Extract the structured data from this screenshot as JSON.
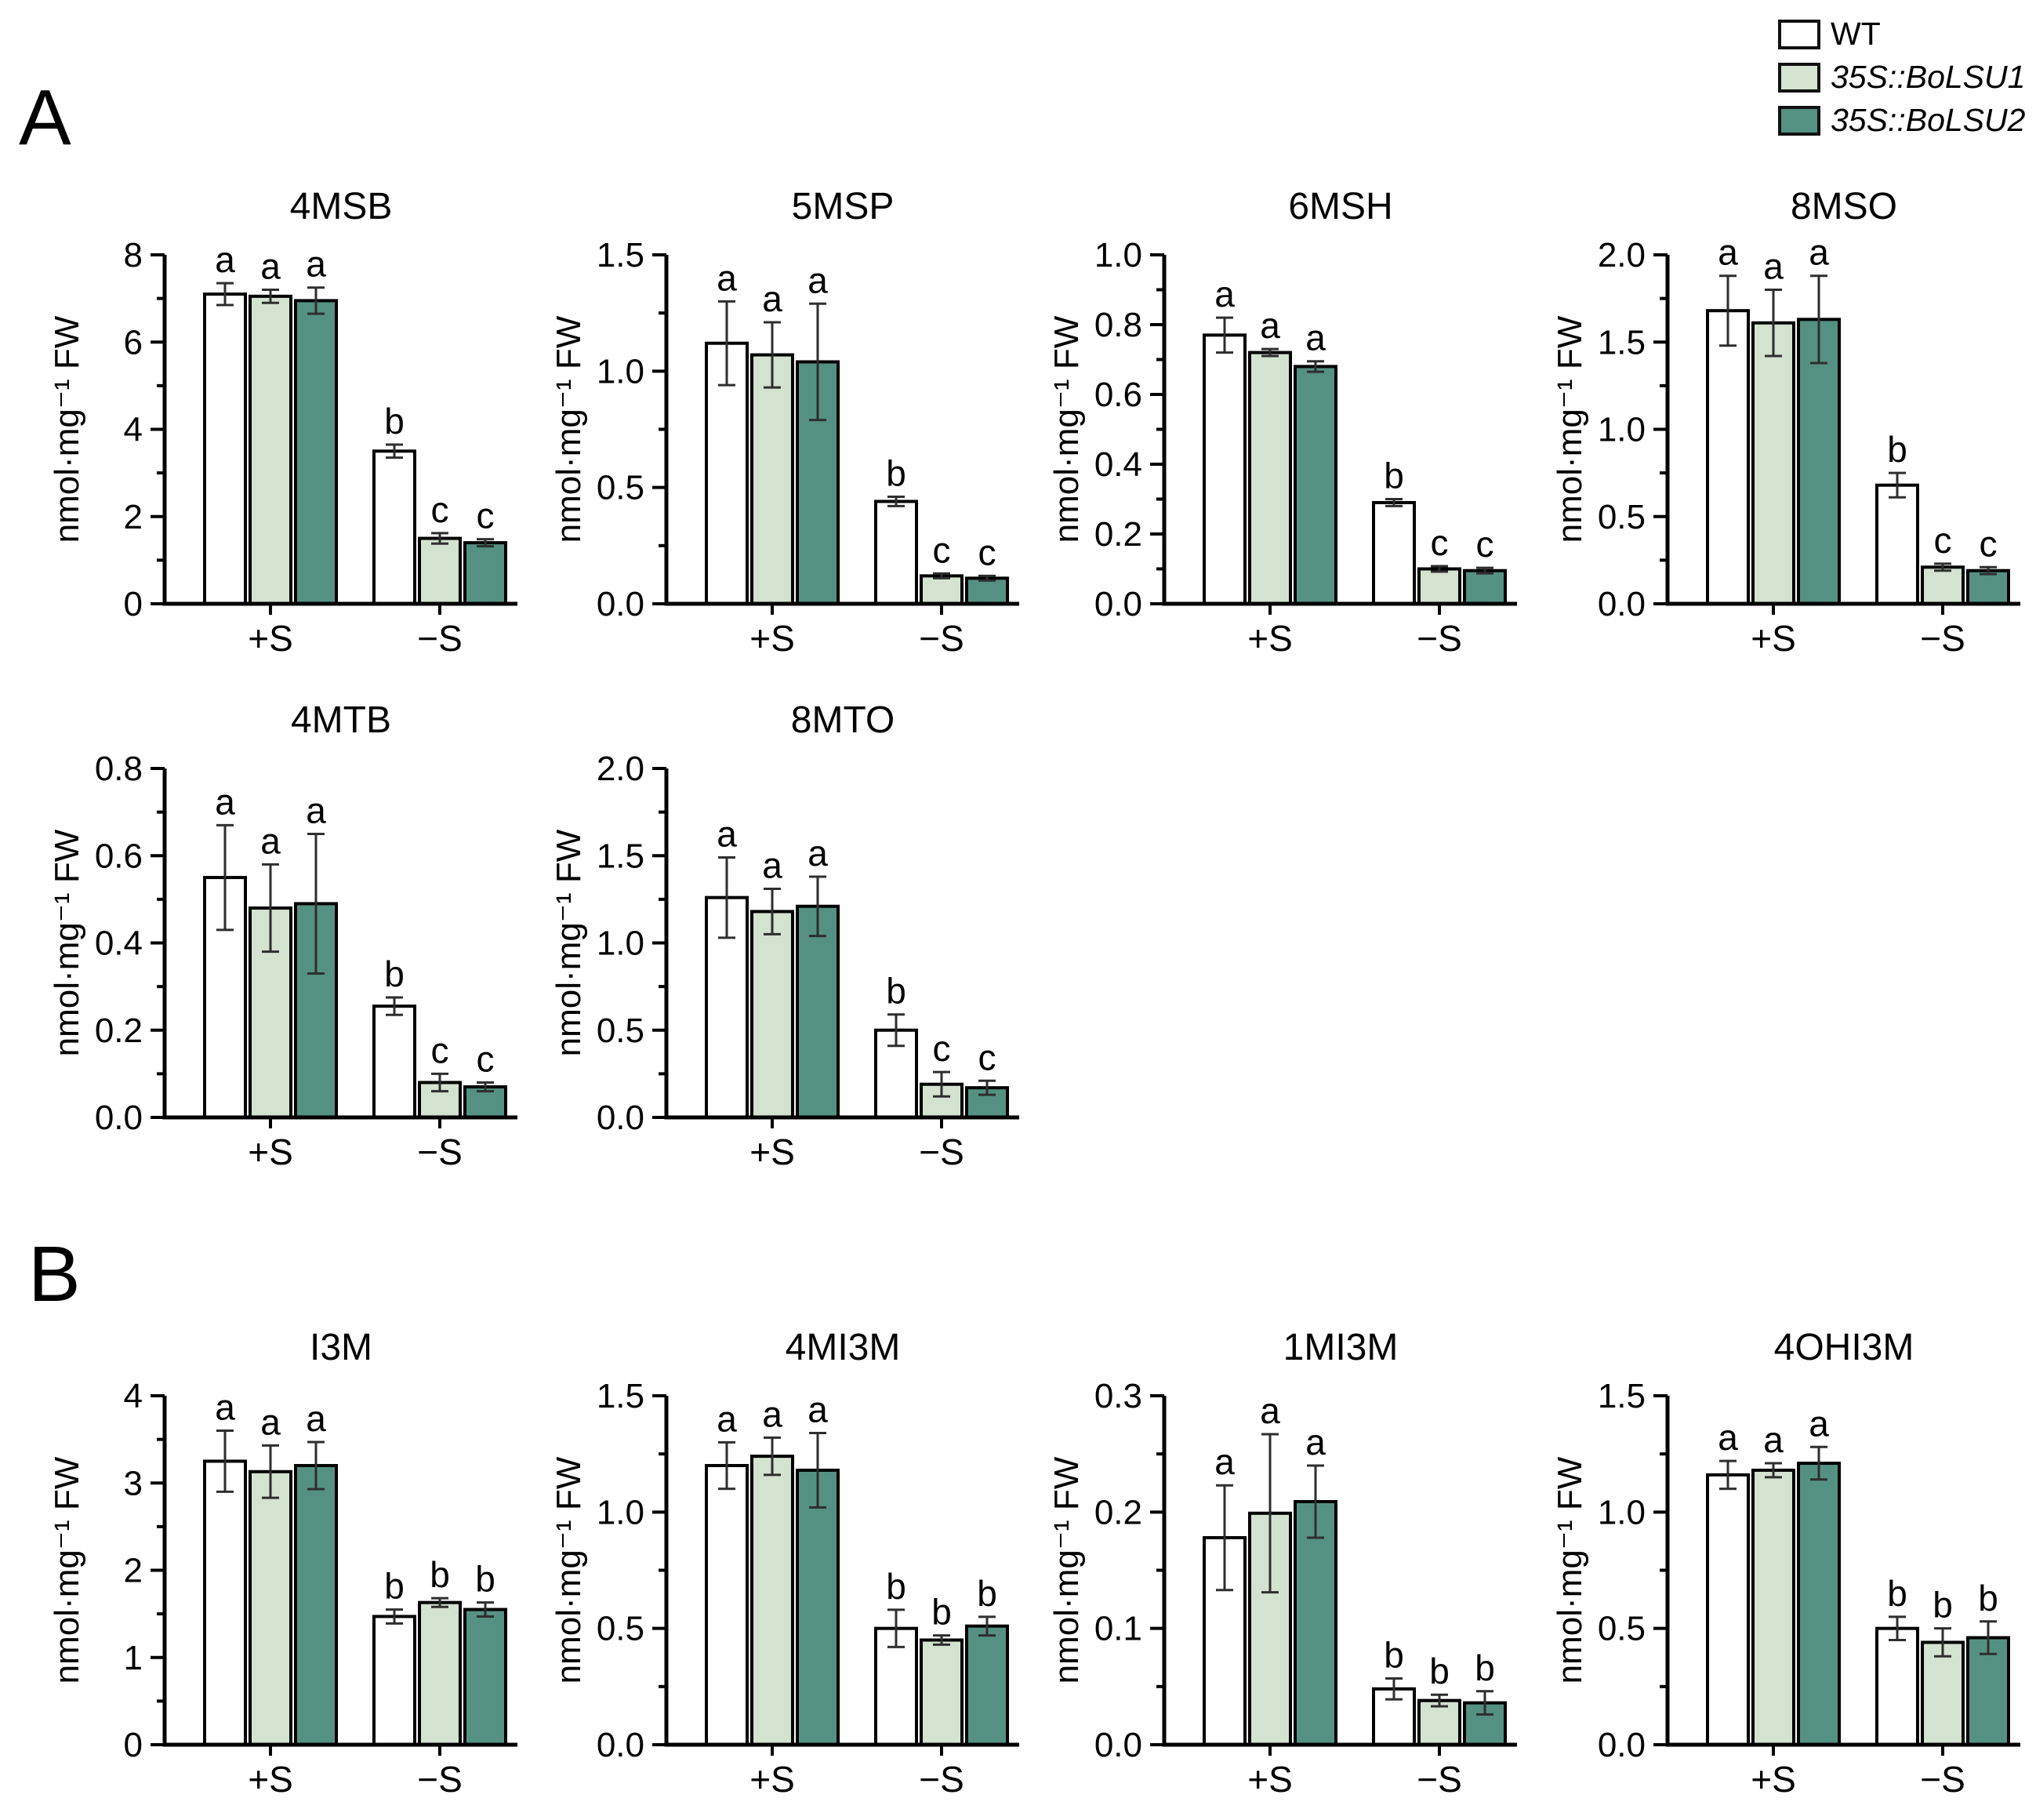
{
  "panels": {
    "a_label": "A",
    "b_label": "B"
  },
  "legend": {
    "items": [
      {
        "label": "WT",
        "color": "#ffffff",
        "italic": false
      },
      {
        "label": "35S::BoLSU1",
        "color": "#d4e2d0",
        "italic": true
      },
      {
        "label": "35S::BoLSU2",
        "color": "#559183",
        "italic": true
      }
    ]
  },
  "axis": {
    "ylabel": "nmol·mg⁻¹ FW",
    "categories": [
      "+S",
      "−S"
    ]
  },
  "chart_data": [
    {
      "type": "bar",
      "panel": "A",
      "title": "4MSB",
      "ylabel": "nmol·mg⁻¹ FW",
      "xlabel": "",
      "categories": [
        "+S",
        "−S"
      ],
      "ylim": [
        0,
        8
      ],
      "yticks": [
        "0",
        "2",
        "4",
        "6",
        "8"
      ],
      "minor_step": 1,
      "series": [
        {
          "name": "WT",
          "values": [
            7.1,
            3.5
          ],
          "errors": [
            0.25,
            0.15
          ],
          "letters": [
            "a",
            "b"
          ]
        },
        {
          "name": "35S::BoLSU1",
          "values": [
            7.05,
            1.5
          ],
          "errors": [
            0.15,
            0.12
          ],
          "letters": [
            "a",
            "c"
          ]
        },
        {
          "name": "35S::BoLSU2",
          "values": [
            6.95,
            1.4
          ],
          "errors": [
            0.3,
            0.08
          ],
          "letters": [
            "a",
            "c"
          ]
        }
      ]
    },
    {
      "type": "bar",
      "panel": "A",
      "title": "5MSP",
      "ylabel": "nmol·mg⁻¹ FW",
      "xlabel": "",
      "categories": [
        "+S",
        "−S"
      ],
      "ylim": [
        0,
        1.5
      ],
      "yticks": [
        "0.0",
        "0.5",
        "1.0",
        "1.5"
      ],
      "minor_step": 0.25,
      "series": [
        {
          "name": "WT",
          "values": [
            1.12,
            0.44
          ],
          "errors": [
            0.18,
            0.02
          ],
          "letters": [
            "a",
            "b"
          ]
        },
        {
          "name": "35S::BoLSU1",
          "values": [
            1.07,
            0.12
          ],
          "errors": [
            0.14,
            0.01
          ],
          "letters": [
            "a",
            "c"
          ]
        },
        {
          "name": "35S::BoLSU2",
          "values": [
            1.04,
            0.11
          ],
          "errors": [
            0.25,
            0.01
          ],
          "letters": [
            "a",
            "c"
          ]
        }
      ]
    },
    {
      "type": "bar",
      "panel": "A",
      "title": "6MSH",
      "ylabel": "nmol·mg⁻¹ FW",
      "xlabel": "",
      "categories": [
        "+S",
        "−S"
      ],
      "ylim": [
        0,
        1.0
      ],
      "yticks": [
        "0.0",
        "0.2",
        "0.4",
        "0.6",
        "0.8",
        "1.0"
      ],
      "minor_step": 0.1,
      "series": [
        {
          "name": "WT",
          "values": [
            0.77,
            0.29
          ],
          "errors": [
            0.05,
            0.01
          ],
          "letters": [
            "a",
            "b"
          ]
        },
        {
          "name": "35S::BoLSU1",
          "values": [
            0.72,
            0.1
          ],
          "errors": [
            0.01,
            0.008
          ],
          "letters": [
            "a",
            "c"
          ]
        },
        {
          "name": "35S::BoLSU2",
          "values": [
            0.68,
            0.095
          ],
          "errors": [
            0.015,
            0.008
          ],
          "letters": [
            "a",
            "c"
          ]
        }
      ]
    },
    {
      "type": "bar",
      "panel": "A",
      "title": "8MSO",
      "ylabel": "nmol·mg⁻¹ FW",
      "xlabel": "",
      "categories": [
        "+S",
        "−S"
      ],
      "ylim": [
        0,
        2.0
      ],
      "yticks": [
        "0.0",
        "0.5",
        "1.0",
        "1.5",
        "2.0"
      ],
      "minor_step": 0.25,
      "series": [
        {
          "name": "WT",
          "values": [
            1.68,
            0.68
          ],
          "errors": [
            0.2,
            0.07
          ],
          "letters": [
            "a",
            "b"
          ]
        },
        {
          "name": "35S::BoLSU1",
          "values": [
            1.61,
            0.21
          ],
          "errors": [
            0.19,
            0.02
          ],
          "letters": [
            "a",
            "c"
          ]
        },
        {
          "name": "35S::BoLSU2",
          "values": [
            1.63,
            0.19
          ],
          "errors": [
            0.25,
            0.02
          ],
          "letters": [
            "a",
            "c"
          ]
        }
      ]
    },
    {
      "type": "bar",
      "panel": "A",
      "title": "4MTB",
      "ylabel": "nmol·mg⁻¹ FW",
      "xlabel": "",
      "categories": [
        "+S",
        "−S"
      ],
      "ylim": [
        0,
        0.8
      ],
      "yticks": [
        "0.0",
        "0.2",
        "0.4",
        "0.6",
        "0.8"
      ],
      "minor_step": 0.1,
      "series": [
        {
          "name": "WT",
          "values": [
            0.55,
            0.255
          ],
          "errors": [
            0.12,
            0.02
          ],
          "letters": [
            "a",
            "b"
          ]
        },
        {
          "name": "35S::BoLSU1",
          "values": [
            0.48,
            0.08
          ],
          "errors": [
            0.1,
            0.02
          ],
          "letters": [
            "a",
            "c"
          ]
        },
        {
          "name": "35S::BoLSU2",
          "values": [
            0.49,
            0.07
          ],
          "errors": [
            0.16,
            0.01
          ],
          "letters": [
            "a",
            "c"
          ]
        }
      ]
    },
    {
      "type": "bar",
      "panel": "A",
      "title": "8MTO",
      "ylabel": "nmol·mg⁻¹ FW",
      "xlabel": "",
      "categories": [
        "+S",
        "−S"
      ],
      "ylim": [
        0,
        2.0
      ],
      "yticks": [
        "0.0",
        "0.5",
        "1.0",
        "1.5",
        "2.0"
      ],
      "minor_step": 0.25,
      "series": [
        {
          "name": "WT",
          "values": [
            1.26,
            0.5
          ],
          "errors": [
            0.23,
            0.09
          ],
          "letters": [
            "a",
            "b"
          ]
        },
        {
          "name": "35S::BoLSU1",
          "values": [
            1.18,
            0.19
          ],
          "errors": [
            0.13,
            0.07
          ],
          "letters": [
            "a",
            "c"
          ]
        },
        {
          "name": "35S::BoLSU2",
          "values": [
            1.21,
            0.17
          ],
          "errors": [
            0.17,
            0.04
          ],
          "letters": [
            "a",
            "c"
          ]
        }
      ]
    },
    {
      "type": "bar",
      "panel": "B",
      "title": "I3M",
      "ylabel": "nmol·mg⁻¹ FW",
      "xlabel": "",
      "categories": [
        "+S",
        "−S"
      ],
      "ylim": [
        0,
        4
      ],
      "yticks": [
        "0",
        "1",
        "2",
        "3",
        "4"
      ],
      "minor_step": 0.5,
      "series": [
        {
          "name": "WT",
          "values": [
            3.25,
            1.47
          ],
          "errors": [
            0.35,
            0.08
          ],
          "letters": [
            "a",
            "b"
          ]
        },
        {
          "name": "35S::BoLSU1",
          "values": [
            3.13,
            1.63
          ],
          "errors": [
            0.3,
            0.05
          ],
          "letters": [
            "a",
            "b"
          ]
        },
        {
          "name": "35S::BoLSU2",
          "values": [
            3.2,
            1.55
          ],
          "errors": [
            0.27,
            0.08
          ],
          "letters": [
            "a",
            "b"
          ]
        }
      ]
    },
    {
      "type": "bar",
      "panel": "B",
      "title": "4MI3M",
      "ylabel": "nmol·mg⁻¹ FW",
      "xlabel": "",
      "categories": [
        "+S",
        "−S"
      ],
      "ylim": [
        0,
        1.5
      ],
      "yticks": [
        "0.0",
        "0.5",
        "1.0",
        "1.5"
      ],
      "minor_step": 0.25,
      "series": [
        {
          "name": "WT",
          "values": [
            1.2,
            0.5
          ],
          "errors": [
            0.1,
            0.08
          ],
          "letters": [
            "a",
            "b"
          ]
        },
        {
          "name": "35S::BoLSU1",
          "values": [
            1.24,
            0.45
          ],
          "errors": [
            0.08,
            0.02
          ],
          "letters": [
            "a",
            "b"
          ]
        },
        {
          "name": "35S::BoLSU2",
          "values": [
            1.18,
            0.51
          ],
          "errors": [
            0.16,
            0.04
          ],
          "letters": [
            "a",
            "b"
          ]
        }
      ]
    },
    {
      "type": "bar",
      "panel": "B",
      "title": "1MI3M",
      "ylabel": "nmol·mg⁻¹ FW",
      "xlabel": "",
      "categories": [
        "+S",
        "−S"
      ],
      "ylim": [
        0,
        0.3
      ],
      "yticks": [
        "0.0",
        "0.1",
        "0.2",
        "0.3"
      ],
      "minor_step": 0.05,
      "series": [
        {
          "name": "WT",
          "values": [
            0.178,
            0.048
          ],
          "errors": [
            0.045,
            0.009
          ],
          "letters": [
            "a",
            "b"
          ]
        },
        {
          "name": "35S::BoLSU1",
          "values": [
            0.199,
            0.038
          ],
          "errors": [
            0.068,
            0.005
          ],
          "letters": [
            "a",
            "b"
          ]
        },
        {
          "name": "35S::BoLSU2",
          "values": [
            0.209,
            0.036
          ],
          "errors": [
            0.031,
            0.01
          ],
          "letters": [
            "a",
            "b"
          ]
        }
      ]
    },
    {
      "type": "bar",
      "panel": "B",
      "title": "4OHI3M",
      "ylabel": "nmol·mg⁻¹ FW",
      "xlabel": "",
      "categories": [
        "+S",
        "−S"
      ],
      "ylim": [
        0,
        1.5
      ],
      "yticks": [
        "0.0",
        "0.5",
        "1.0",
        "1.5"
      ],
      "minor_step": 0.25,
      "series": [
        {
          "name": "WT",
          "values": [
            1.16,
            0.5
          ],
          "errors": [
            0.06,
            0.05
          ],
          "letters": [
            "a",
            "b"
          ]
        },
        {
          "name": "35S::BoLSU1",
          "values": [
            1.18,
            0.44
          ],
          "errors": [
            0.03,
            0.06
          ],
          "letters": [
            "a",
            "b"
          ]
        },
        {
          "name": "35S::BoLSU2",
          "values": [
            1.21,
            0.46
          ],
          "errors": [
            0.07,
            0.07
          ],
          "letters": [
            "a",
            "b"
          ]
        }
      ]
    }
  ]
}
